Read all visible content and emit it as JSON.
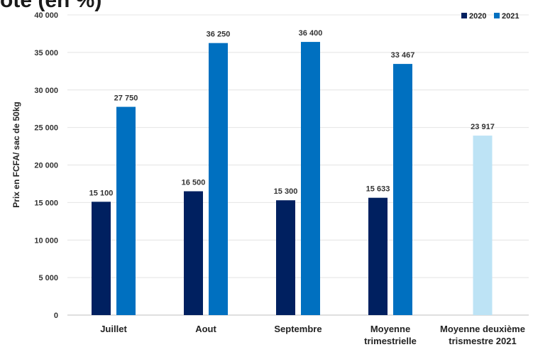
{
  "title_fragment": "ote (en %)",
  "chart_data": {
    "type": "bar",
    "categories": [
      "Juillet",
      "Aout",
      "Septembre",
      "Moyenne\ntrimestrielle",
      "Moyenne deuxième\ntrismestre 2021"
    ],
    "series": [
      {
        "name": "2020",
        "color": "#002060",
        "values": [
          15100,
          16500,
          15300,
          15633,
          null
        ],
        "labels": [
          "15 100",
          "16 500",
          "15 300",
          "15 633",
          null
        ]
      },
      {
        "name": "2021",
        "color": "#0070C0",
        "values": [
          27750,
          36250,
          36400,
          33467,
          null
        ],
        "labels": [
          "27 750",
          "36 250",
          "36 400",
          "33 467",
          null
        ]
      }
    ],
    "extra_bar": {
      "category_index": 4,
      "value": 23917,
      "label": "23 917",
      "color": "#BDE3F5"
    },
    "ylabel": "Prix en FCFA/ sac de 50kg",
    "ylim": [
      0,
      40000
    ],
    "yticks": [
      0,
      5000,
      10000,
      15000,
      20000,
      25000,
      30000,
      35000,
      40000
    ],
    "ytick_labels": [
      "0",
      "5 000",
      "10 000",
      "15 000",
      "20 000",
      "25 000",
      "30 000",
      "35 000",
      "40 000"
    ],
    "grid": true,
    "legend": "top-right"
  }
}
